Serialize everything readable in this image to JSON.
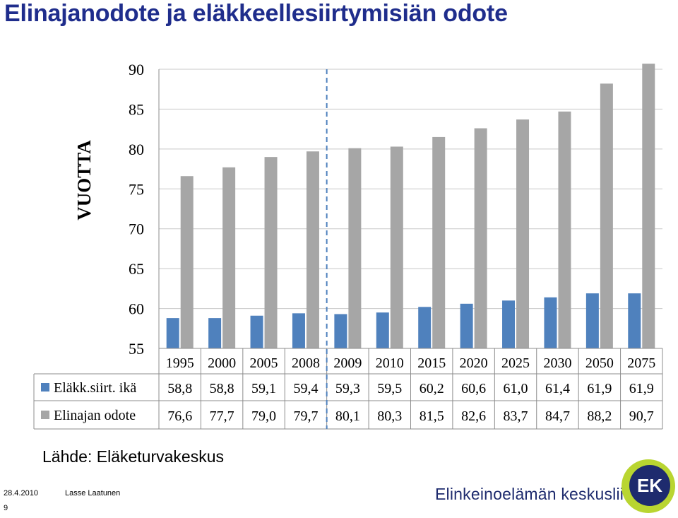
{
  "slide": {
    "title": "Elinajanodote ja eläkkeellesiirtymisiän odote",
    "source": "Lähde: Eläketurvakeskus",
    "footer": {
      "date": "28.4.2010",
      "author": "Lasse Laatunen",
      "page": "9"
    },
    "org_name": "Elinkeinoelämän keskusliitto",
    "logo_text": "EK"
  },
  "colors": {
    "title": "#1f2d8c",
    "series1": "#4f81bd",
    "series2": "#a6a6a6",
    "divider": "#4f81bd",
    "logo_green": "#b9d531",
    "logo_blue": "#1e2b6e"
  },
  "chart_data": {
    "type": "bar",
    "title": "",
    "ylabel": "VUOTTA",
    "ylim": [
      55,
      90
    ],
    "yticks": [
      90,
      85,
      80,
      75,
      70,
      65,
      60,
      55
    ],
    "categories": [
      "1995",
      "2000",
      "2005",
      "2008",
      "2009",
      "2010",
      "2015",
      "2020",
      "2025",
      "2030",
      "2050",
      "2075"
    ],
    "series": [
      {
        "name": "Eläkk.siirt. ikä",
        "color": "#4f81bd",
        "values": [
          58.8,
          58.8,
          59.1,
          59.4,
          59.3,
          59.5,
          60.2,
          60.6,
          61.0,
          61.4,
          61.9,
          61.9
        ],
        "labels": [
          "58,8",
          "58,8",
          "59,1",
          "59,4",
          "59,3",
          "59,5",
          "60,2",
          "60,6",
          "61,0",
          "61,4",
          "61,9",
          "61,9"
        ]
      },
      {
        "name": "Elinajan odote",
        "color": "#a6a6a6",
        "values": [
          76.6,
          77.7,
          79.0,
          79.7,
          80.1,
          80.3,
          81.5,
          82.6,
          83.7,
          84.7,
          88.2,
          90.7
        ],
        "labels": [
          "76,6",
          "77,7",
          "79,0",
          "79,7",
          "80,1",
          "80,3",
          "81,5",
          "82,6",
          "83,7",
          "84,7",
          "88,2",
          "90,7"
        ]
      }
    ],
    "divider_after": "2008",
    "grid": true,
    "legend": "data-table"
  }
}
